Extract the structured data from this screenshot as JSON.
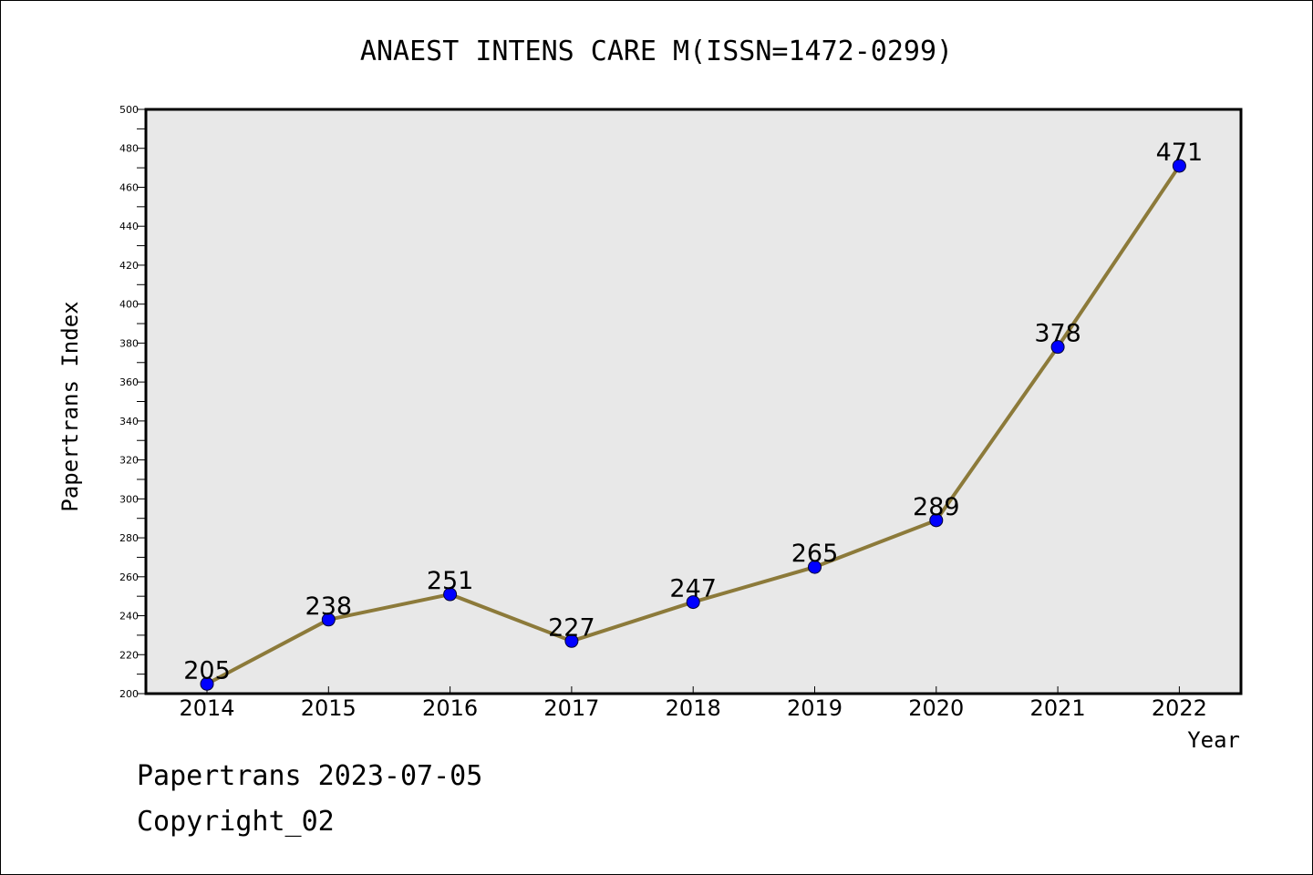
{
  "chart_data": {
    "type": "line",
    "title": "ANAEST INTENS CARE M(ISSN=1472-0299)",
    "xlabel": "Year",
    "ylabel": "Papertrans Index",
    "categories": [
      "2014",
      "2015",
      "2016",
      "2017",
      "2018",
      "2019",
      "2020",
      "2021",
      "2022"
    ],
    "series": [
      {
        "values": [
          205,
          238,
          251,
          227,
          247,
          265,
          289,
          378,
          471
        ],
        "line_color": "#8c7a3a",
        "marker_color": "#0000ff"
      }
    ],
    "data_labels": [
      "205",
      "238",
      "251",
      "227",
      "247",
      "265",
      "289",
      "378",
      "471"
    ],
    "ylim": [
      200,
      500
    ],
    "y_ticks": [
      "200",
      "220",
      "240",
      "260",
      "280",
      "300",
      "320",
      "340",
      "360",
      "380",
      "400",
      "420",
      "440",
      "460",
      "480",
      "500"
    ],
    "plot_background": "#e8e8e8",
    "grid": false,
    "legend": "none"
  },
  "footer": {
    "line1": "Papertrans 2023-07-05",
    "line2": "Copyright_02"
  }
}
